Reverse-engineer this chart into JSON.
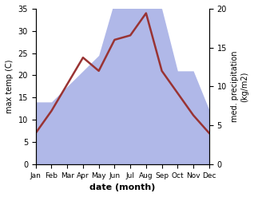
{
  "months": [
    "Jan",
    "Feb",
    "Mar",
    "Apr",
    "May",
    "Jun",
    "Jul",
    "Aug",
    "Sep",
    "Oct",
    "Nov",
    "Dec"
  ],
  "temperature": [
    7,
    12,
    18,
    24,
    21,
    28,
    29,
    34,
    21,
    16,
    11,
    7
  ],
  "precipitation": [
    8,
    8,
    10,
    12,
    14,
    21,
    21,
    21,
    20,
    12,
    12,
    7
  ],
  "temp_color": "#993333",
  "precip_color": "#b0b8e8",
  "temp_ylim": [
    0,
    35
  ],
  "precip_ylim": [
    0,
    20
  ],
  "ylabel_left": "max temp (C)",
  "ylabel_right": "med. precipitation\n(kg/m2)",
  "xlabel": "date (month)",
  "background_color": "#ffffff",
  "left_yticks": [
    0,
    5,
    10,
    15,
    20,
    25,
    30,
    35
  ],
  "right_yticks": [
    0,
    5,
    10,
    15,
    20
  ]
}
